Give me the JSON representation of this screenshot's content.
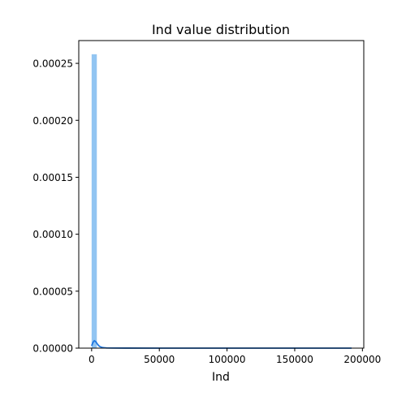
{
  "chart_data": {
    "type": "bar",
    "title": "Ind value distribution",
    "xlabel": "Ind",
    "ylabel": "",
    "xlim": [
      -9500,
      201000
    ],
    "ylim": [
      0,
      0.00027
    ],
    "x_ticks": [
      0,
      50000,
      100000,
      150000,
      200000
    ],
    "x_tick_labels": [
      "0",
      "50000",
      "100000",
      "150000",
      "200000"
    ],
    "y_ticks": [
      0,
      5e-05,
      0.0001,
      0.00015,
      0.0002,
      0.00025
    ],
    "y_tick_labels": [
      "0.00000",
      "0.00005",
      "0.00010",
      "0.00015",
      "0.00020",
      "0.00025"
    ],
    "grid": false,
    "legend": "none",
    "series": [
      {
        "kind": "histogram",
        "bin_edges": [
          0,
          3840
        ],
        "values": [
          0.000258
        ],
        "color": "#92c5f2"
      },
      {
        "kind": "kde_line",
        "x": [
          0,
          1000,
          2000,
          3000,
          4000,
          5000,
          6000,
          8000,
          11000,
          16000,
          25000,
          50000,
          100000,
          150000,
          192000
        ],
        "values": [
          2e-06,
          5e-06,
          6.5e-06,
          5.8e-06,
          4e-06,
          2.5e-06,
          1.4e-06,
          5e-07,
          2e-07,
          8e-08,
          3e-08,
          1e-08,
          5e-09,
          3e-09,
          2e-09
        ],
        "color": "#1f77e0"
      }
    ]
  }
}
